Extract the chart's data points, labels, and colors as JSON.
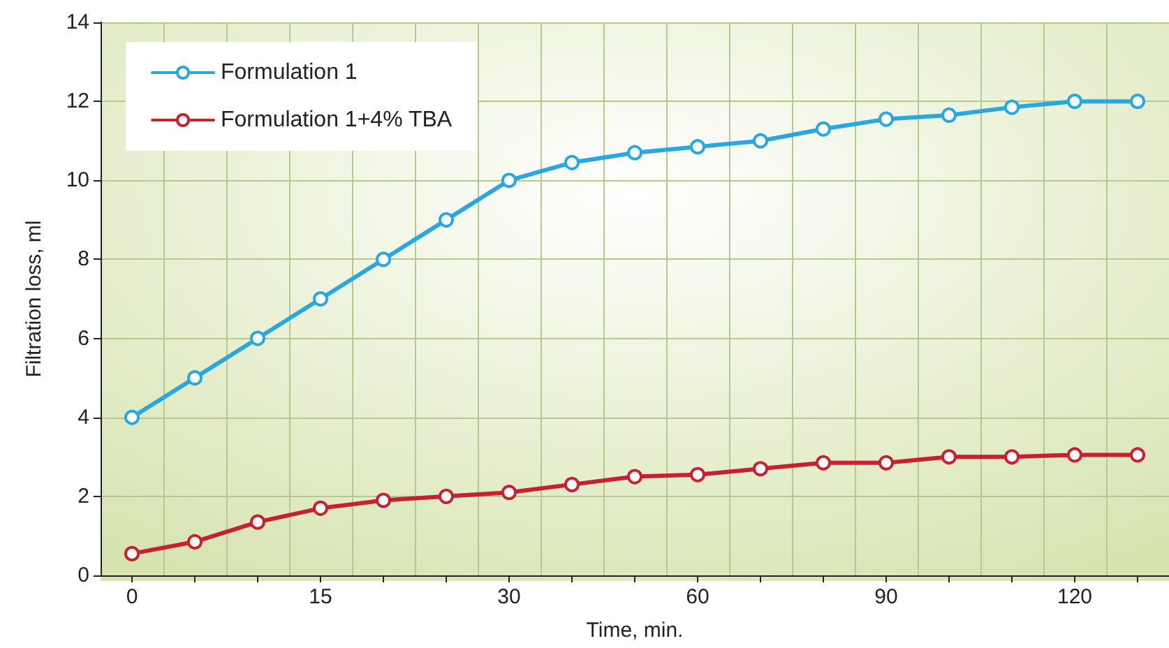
{
  "chart_data": {
    "type": "line",
    "xlabel": "Time, min.",
    "ylabel": "Filtration loss, ml",
    "categories": [
      "0",
      null,
      null,
      "15",
      null,
      null,
      "30",
      null,
      null,
      "60",
      null,
      null,
      "90",
      null,
      null,
      "120",
      null
    ],
    "series": [
      {
        "name": "Formulation 1",
        "color": "#29a8e0",
        "values": [
          4,
          5,
          6,
          7,
          8,
          9,
          10,
          10.45,
          10.7,
          10.85,
          11.0,
          11.3,
          11.55,
          11.65,
          11.85,
          12.0,
          12.0
        ]
      },
      {
        "name": "Formulation 1+4% TBA",
        "color": "#c8202f",
        "values": [
          0.55,
          0.85,
          1.35,
          1.7,
          1.9,
          2.0,
          2.1,
          2.3,
          2.5,
          2.55,
          2.7,
          2.85,
          2.85,
          3.0,
          3.0,
          3.05,
          3.05
        ]
      }
    ],
    "ylim": [
      0,
      14
    ],
    "yticks": [
      0,
      2,
      4,
      6,
      8,
      10,
      12,
      14
    ],
    "grid": true,
    "legend": "top left",
    "marker": "circle",
    "line_style": "solid"
  }
}
